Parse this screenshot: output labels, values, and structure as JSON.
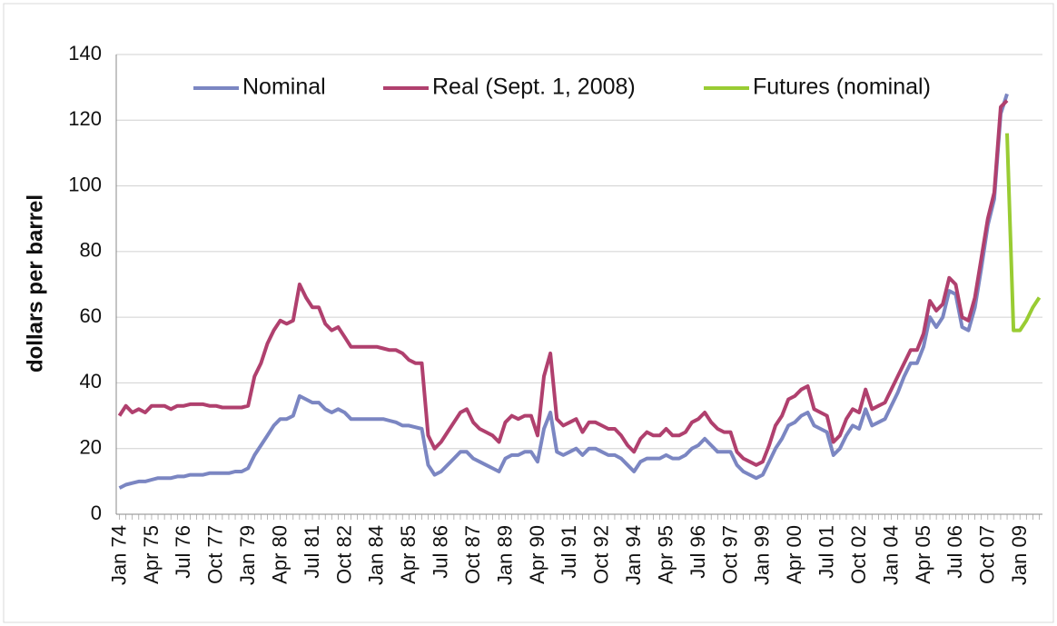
{
  "chart_data": {
    "type": "line",
    "y_label": "dollars per barrel",
    "ylim": [
      0,
      140
    ],
    "yticks": [
      0,
      20,
      40,
      60,
      80,
      100,
      120,
      140
    ],
    "grid": true,
    "legend": "top",
    "categories": [
      "Jan 74",
      null,
      null,
      null,
      null,
      "Apr 75",
      null,
      null,
      null,
      null,
      "Jul 76",
      null,
      null,
      null,
      null,
      "Oct 77",
      null,
      null,
      null,
      null,
      "Jan 79",
      null,
      null,
      null,
      null,
      "Apr 80",
      null,
      null,
      null,
      null,
      "Jul 81",
      null,
      null,
      null,
      null,
      "Oct 82",
      null,
      null,
      null,
      null,
      "Jan 84",
      null,
      null,
      null,
      null,
      "Apr 85",
      null,
      null,
      null,
      null,
      "Jul 86",
      null,
      null,
      null,
      null,
      "Oct 87",
      null,
      null,
      null,
      null,
      "Jan 89",
      null,
      null,
      null,
      null,
      "Apr 90",
      null,
      null,
      null,
      null,
      "Jul 91",
      null,
      null,
      null,
      null,
      "Oct 92",
      null,
      null,
      null,
      null,
      "Jan 94",
      null,
      null,
      null,
      null,
      "Apr 95",
      null,
      null,
      null,
      null,
      "Jul 96",
      null,
      null,
      null,
      null,
      "Oct 97",
      null,
      null,
      null,
      null,
      "Jan 99",
      null,
      null,
      null,
      null,
      "Apr 00",
      null,
      null,
      null,
      null,
      "Jul 01",
      null,
      null,
      null,
      null,
      "Oct 02",
      null,
      null,
      null,
      null,
      "Jan 04",
      null,
      null,
      null,
      null,
      "Apr 05",
      null,
      null,
      null,
      null,
      "Jul 06",
      null,
      null,
      null,
      null,
      "Oct 07",
      null,
      null,
      null,
      null,
      "Jan 09",
      null,
      null,
      null
    ],
    "series": [
      {
        "name": "Nominal",
        "color": "#7b86c2",
        "values": [
          8,
          9,
          9.5,
          10,
          10,
          10.5,
          11,
          11,
          11,
          11.5,
          11.5,
          12,
          12,
          12,
          12.5,
          12.5,
          12.5,
          12.5,
          13,
          13,
          14,
          18,
          21,
          24,
          27,
          29,
          29,
          30,
          36,
          35,
          34,
          34,
          32,
          31,
          32,
          31,
          29,
          29,
          29,
          29,
          29,
          29,
          28.5,
          28,
          27,
          27,
          26.5,
          26,
          15,
          12,
          13,
          15,
          17,
          19,
          19,
          17,
          16,
          15,
          14,
          13,
          17,
          18,
          18,
          19,
          19,
          16,
          26,
          31,
          19,
          18,
          19,
          20,
          18,
          20,
          20,
          19,
          18,
          18,
          17,
          15,
          13,
          16,
          17,
          17,
          17,
          18,
          17,
          17,
          18,
          20,
          21,
          23,
          21,
          19,
          19,
          19,
          15,
          13,
          12,
          11,
          12,
          16,
          20,
          23,
          27,
          28,
          30,
          31,
          27,
          26,
          25,
          18,
          20,
          24,
          27,
          26,
          32,
          27,
          28,
          29,
          33,
          37,
          42,
          46,
          46,
          51,
          60,
          57,
          60,
          68,
          67,
          57,
          56,
          63,
          75,
          88,
          96,
          122,
          128,
          null,
          null,
          null,
          null,
          null
        ]
      },
      {
        "name": "Real (Sept. 1, 2008)",
        "color": "#b0406e",
        "values": [
          30,
          33,
          31,
          32,
          31,
          33,
          33,
          33,
          32,
          33,
          33,
          33.5,
          33.5,
          33.5,
          33,
          33,
          32.5,
          32.5,
          32.5,
          32.5,
          33,
          42,
          46,
          52,
          56,
          59,
          58,
          59,
          70,
          66,
          63,
          63,
          58,
          56,
          57,
          54,
          51,
          51,
          51,
          51,
          51,
          50.5,
          50,
          50,
          49,
          47,
          46,
          46,
          24,
          20,
          22,
          25,
          28,
          31,
          32,
          28,
          26,
          25,
          24,
          22,
          28,
          30,
          29,
          30,
          30,
          24,
          42,
          49,
          29,
          27,
          28,
          29,
          25,
          28,
          28,
          27,
          26,
          26,
          24,
          21,
          19,
          23,
          25,
          24,
          24,
          26,
          24,
          24,
          25,
          28,
          29,
          31,
          28,
          26,
          25,
          25,
          19,
          17,
          16,
          15,
          16,
          21,
          27,
          30,
          35,
          36,
          38,
          39,
          32,
          31,
          30,
          22,
          24,
          29,
          32,
          31,
          38,
          32,
          33,
          34,
          38,
          42,
          46,
          50,
          50,
          55,
          65,
          62,
          64,
          72,
          70,
          60,
          59,
          66,
          78,
          90,
          98,
          124,
          126,
          null,
          null,
          null,
          null,
          null
        ]
      },
      {
        "name": "Futures (nominal)",
        "color": "#99cc33",
        "values": [
          null,
          null,
          null,
          null,
          null,
          null,
          null,
          null,
          null,
          null,
          null,
          null,
          null,
          null,
          null,
          null,
          null,
          null,
          null,
          null,
          null,
          null,
          null,
          null,
          null,
          null,
          null,
          null,
          null,
          null,
          null,
          null,
          null,
          null,
          null,
          null,
          null,
          null,
          null,
          null,
          null,
          null,
          null,
          null,
          null,
          null,
          null,
          null,
          null,
          null,
          null,
          null,
          null,
          null,
          null,
          null,
          null,
          null,
          null,
          null,
          null,
          null,
          null,
          null,
          null,
          null,
          null,
          null,
          null,
          null,
          null,
          null,
          null,
          null,
          null,
          null,
          null,
          null,
          null,
          null,
          null,
          null,
          null,
          null,
          null,
          null,
          null,
          null,
          null,
          null,
          null,
          null,
          null,
          null,
          null,
          null,
          null,
          null,
          null,
          null,
          null,
          null,
          null,
          null,
          null,
          null,
          null,
          null,
          null,
          null,
          null,
          null,
          null,
          null,
          null,
          null,
          null,
          null,
          null,
          null,
          null,
          null,
          null,
          null,
          null,
          null,
          null,
          null,
          null,
          null,
          null,
          null,
          null,
          null,
          null,
          null,
          null,
          null,
          116,
          56,
          56,
          59,
          63,
          66
        ]
      }
    ]
  }
}
